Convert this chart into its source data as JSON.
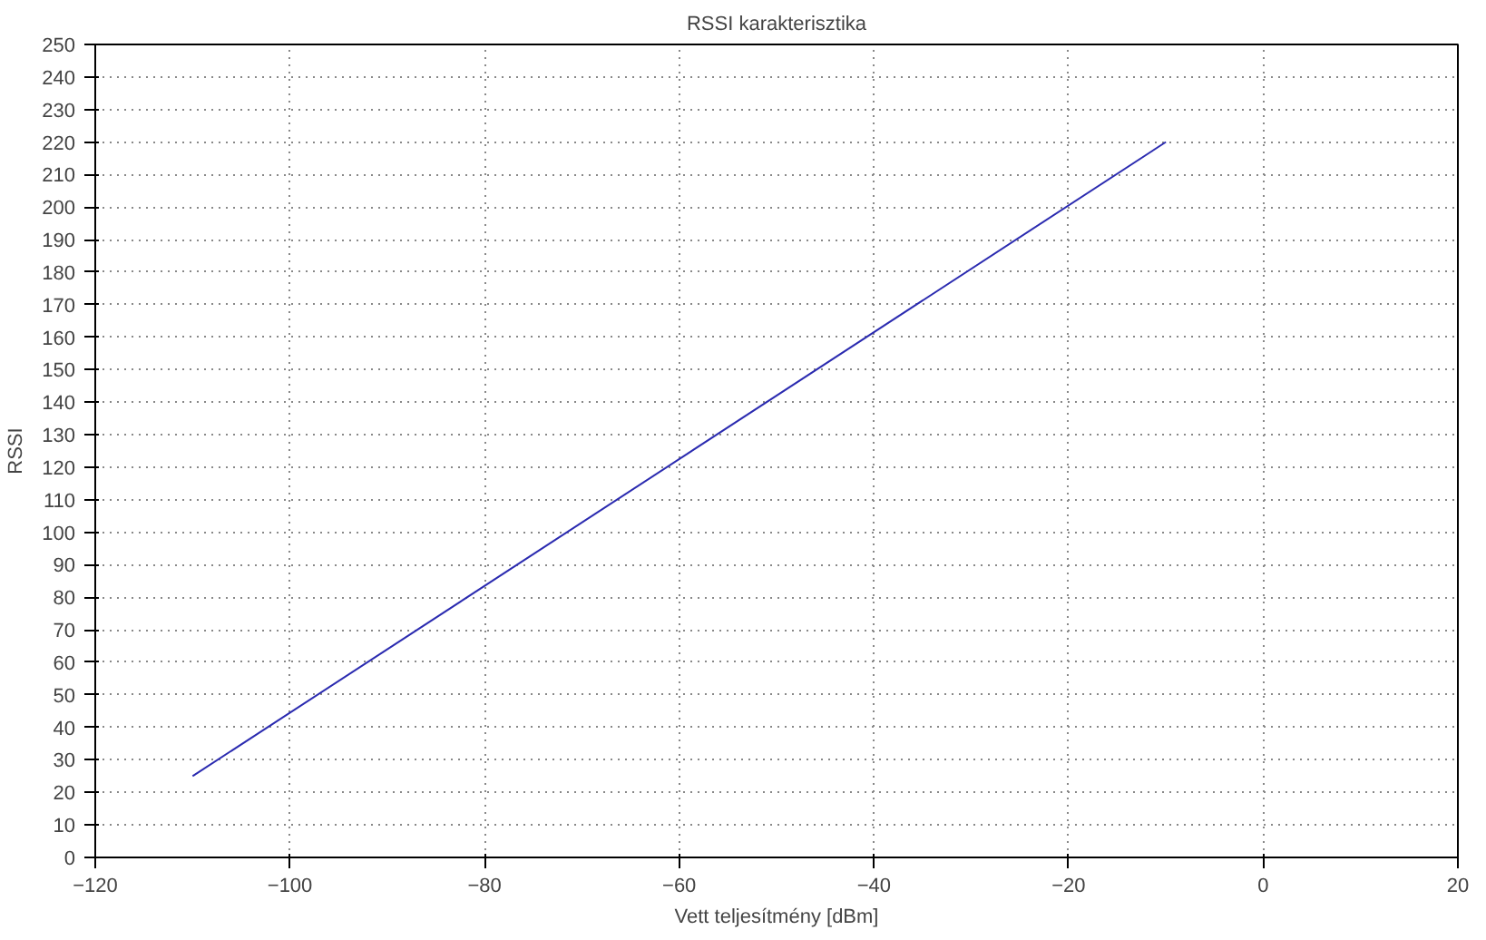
{
  "chart_data": {
    "type": "line",
    "title": "RSSI karakterisztika",
    "xlabel": "Vett teljesítmény [dBm]",
    "ylabel": "RSSI",
    "x": [
      -110,
      -10
    ],
    "series": [
      {
        "color": "#2b2bb0",
        "values": [
          25,
          220
        ]
      }
    ],
    "xlim": [
      -120,
      20
    ],
    "xticks": [
      -120,
      -100,
      -80,
      -60,
      -40,
      -20,
      0,
      20
    ],
    "ylim": [
      0,
      250
    ],
    "yticks": [
      0,
      10,
      20,
      30,
      40,
      50,
      60,
      70,
      80,
      90,
      100,
      110,
      120,
      130,
      140,
      150,
      160,
      170,
      180,
      190,
      200,
      210,
      220,
      230,
      240,
      250
    ],
    "grid": true,
    "line_style": "solid"
  }
}
